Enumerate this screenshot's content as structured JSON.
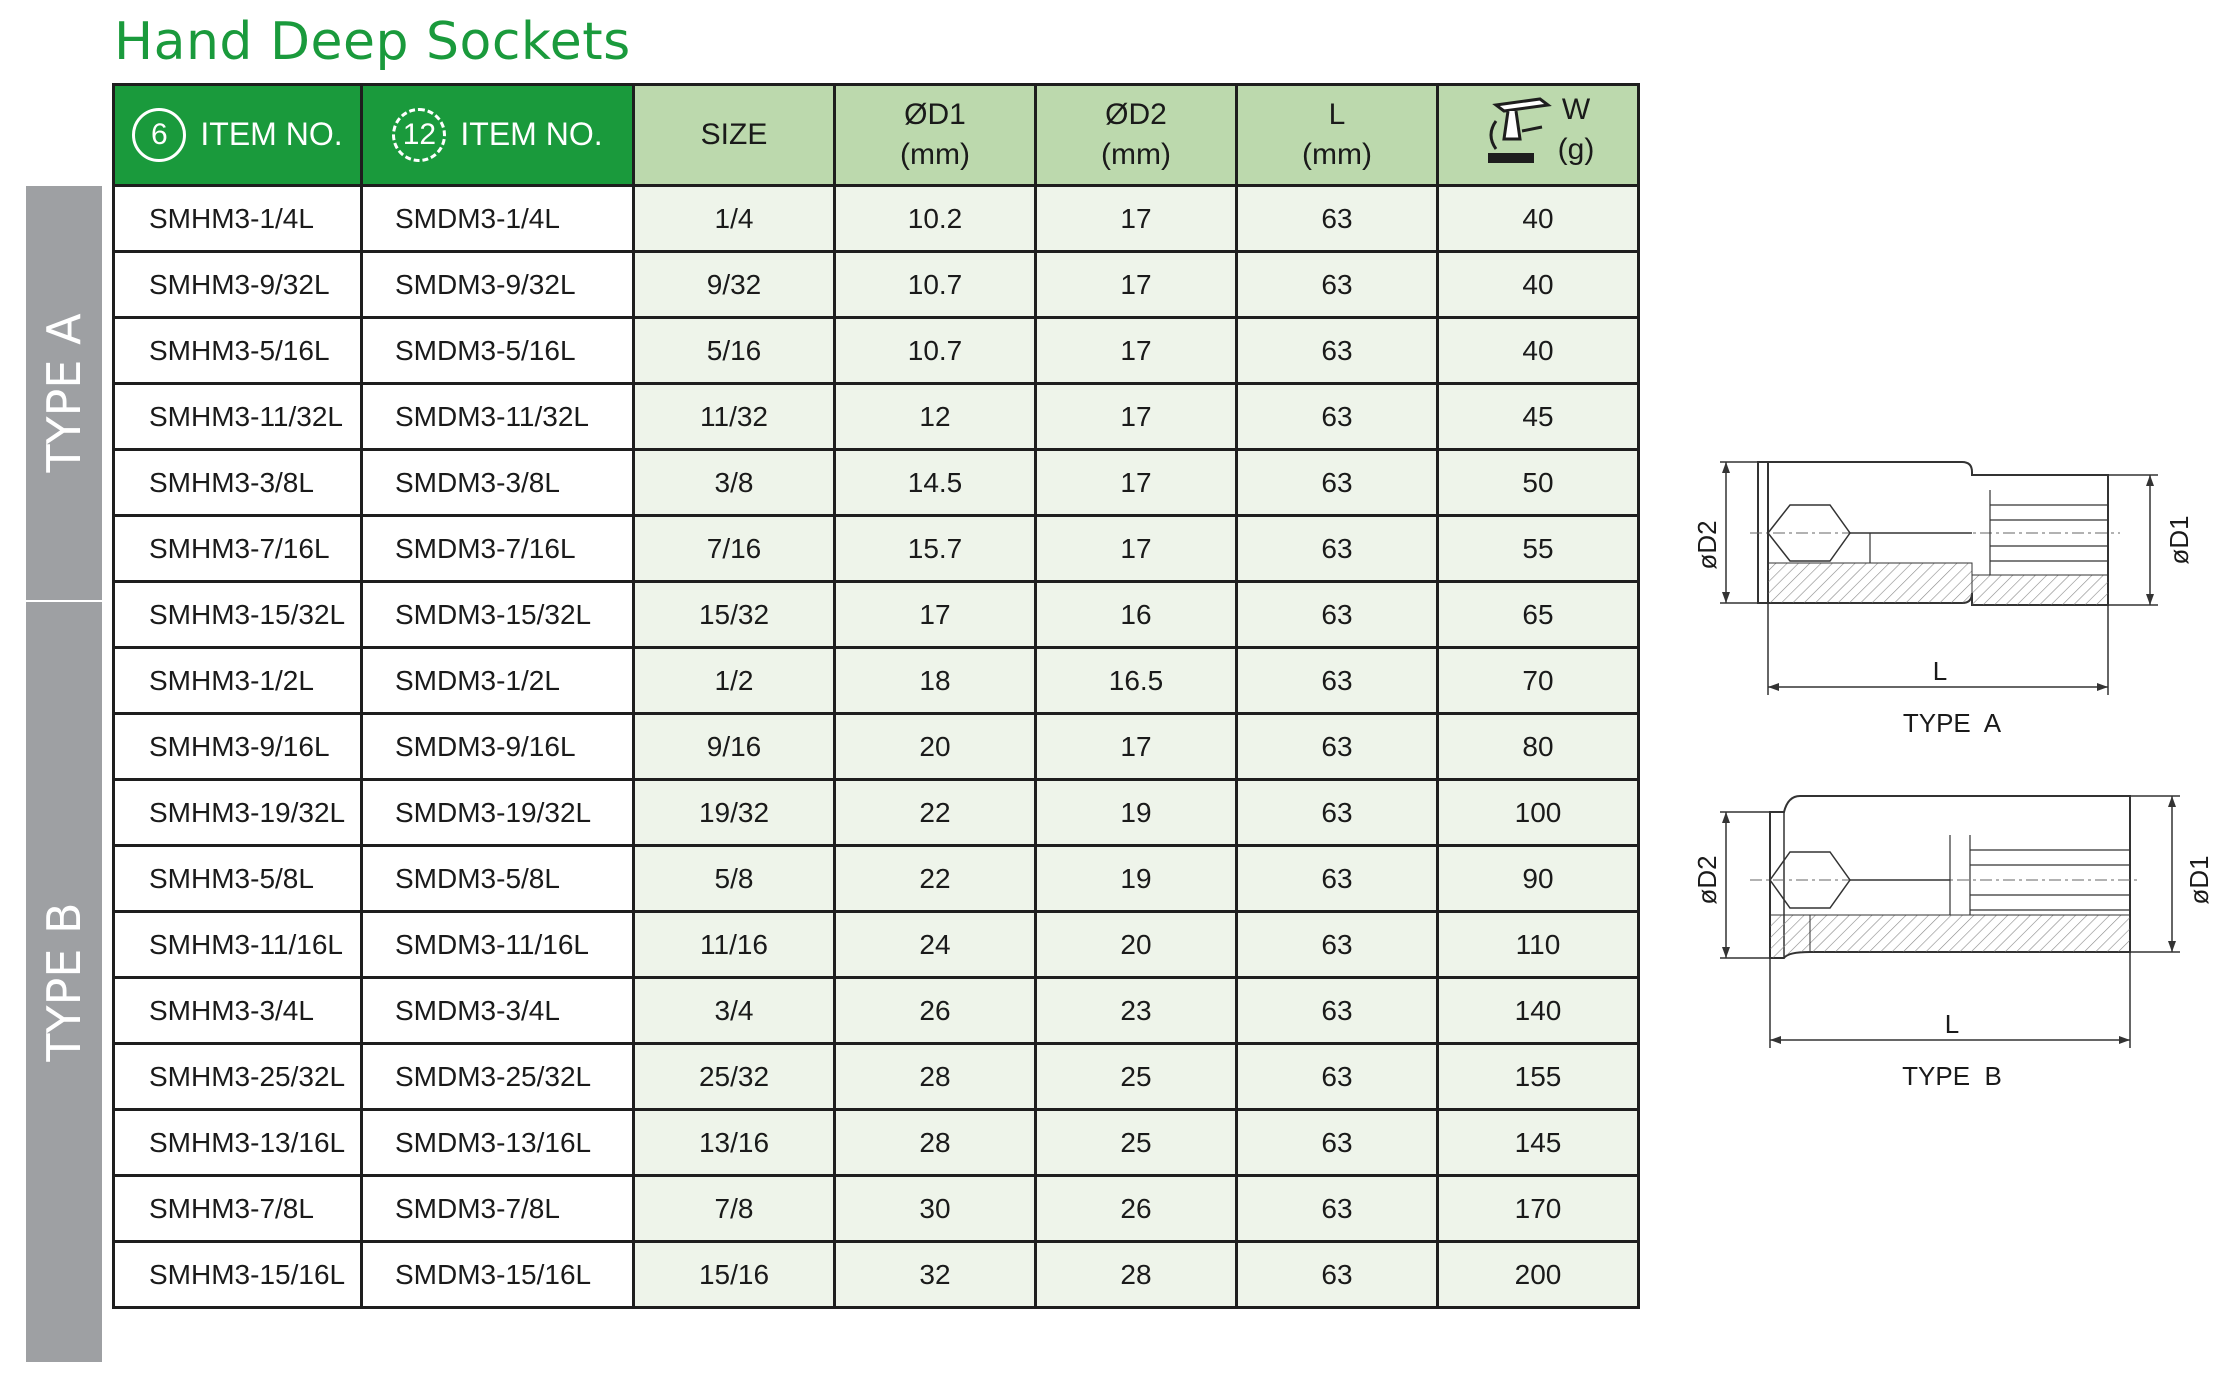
{
  "page": {
    "title": "Hand Deep Sockets"
  },
  "sidebar": {
    "type_a": "TYPE A",
    "type_b": "TYPE B"
  },
  "header": {
    "hex6_number": "6",
    "hex12_number": "12",
    "item_no_6": "ITEM NO.",
    "item_no_12": "ITEM NO.",
    "size": "SIZE",
    "d1": "ØD1",
    "d1_unit": "(mm)",
    "d2": "ØD2",
    "d2_unit": "(mm)",
    "l": "L",
    "l_unit": "(mm)",
    "w": "W",
    "w_unit": "(g)",
    "weight_icon": "scale-icon"
  },
  "rows": [
    {
      "item6": "SMHM3-1/4L",
      "item12": "SMDM3-1/4L",
      "size": "1/4",
      "d1": "10.2",
      "d2": "17",
      "l": "63",
      "w": "40"
    },
    {
      "item6": "SMHM3-9/32L",
      "item12": "SMDM3-9/32L",
      "size": "9/32",
      "d1": "10.7",
      "d2": "17",
      "l": "63",
      "w": "40"
    },
    {
      "item6": "SMHM3-5/16L",
      "item12": "SMDM3-5/16L",
      "size": "5/16",
      "d1": "10.7",
      "d2": "17",
      "l": "63",
      "w": "40"
    },
    {
      "item6": "SMHM3-11/32L",
      "item12": "SMDM3-11/32L",
      "size": "11/32",
      "d1": "12",
      "d2": "17",
      "l": "63",
      "w": "45"
    },
    {
      "item6": "SMHM3-3/8L",
      "item12": "SMDM3-3/8L",
      "size": "3/8",
      "d1": "14.5",
      "d2": "17",
      "l": "63",
      "w": "50"
    },
    {
      "item6": "SMHM3-7/16L",
      "item12": "SMDM3-7/16L",
      "size": "7/16",
      "d1": "15.7",
      "d2": "17",
      "l": "63",
      "w": "55"
    },
    {
      "item6": "SMHM3-15/32L",
      "item12": "SMDM3-15/32L",
      "size": "15/32",
      "d1": "17",
      "d2": "16",
      "l": "63",
      "w": "65"
    },
    {
      "item6": "SMHM3-1/2L",
      "item12": "SMDM3-1/2L",
      "size": "1/2",
      "d1": "18",
      "d2": "16.5",
      "l": "63",
      "w": "70"
    },
    {
      "item6": "SMHM3-9/16L",
      "item12": "SMDM3-9/16L",
      "size": "9/16",
      "d1": "20",
      "d2": "17",
      "l": "63",
      "w": "80"
    },
    {
      "item6": "SMHM3-19/32L",
      "item12": "SMDM3-19/32L",
      "size": "19/32",
      "d1": "22",
      "d2": "19",
      "l": "63",
      "w": "100"
    },
    {
      "item6": "SMHM3-5/8L",
      "item12": "SMDM3-5/8L",
      "size": "5/8",
      "d1": "22",
      "d2": "19",
      "l": "63",
      "w": "90"
    },
    {
      "item6": "SMHM3-11/16L",
      "item12": "SMDM3-11/16L",
      "size": "11/16",
      "d1": "24",
      "d2": "20",
      "l": "63",
      "w": "110"
    },
    {
      "item6": "SMHM3-3/4L",
      "item12": "SMDM3-3/4L",
      "size": "3/4",
      "d1": "26",
      "d2": "23",
      "l": "63",
      "w": "140"
    },
    {
      "item6": "SMHM3-25/32L",
      "item12": "SMDM3-25/32L",
      "size": "25/32",
      "d1": "28",
      "d2": "25",
      "l": "63",
      "w": "155"
    },
    {
      "item6": "SMHM3-13/16L",
      "item12": "SMDM3-13/16L",
      "size": "13/16",
      "d1": "28",
      "d2": "25",
      "l": "63",
      "w": "145"
    },
    {
      "item6": "SMHM3-7/8L",
      "item12": "SMDM3-7/8L",
      "size": "7/8",
      "d1": "30",
      "d2": "26",
      "l": "63",
      "w": "170"
    },
    {
      "item6": "SMHM3-15/16L",
      "item12": "SMDM3-15/16L",
      "size": "15/16",
      "d1": "32",
      "d2": "28",
      "l": "63",
      "w": "200"
    }
  ],
  "drawings": {
    "a": {
      "caption": "TYPE  A",
      "d2": "øD2",
      "d1": "øD1",
      "l": "L"
    },
    "b": {
      "caption": "TYPE  B",
      "d2": "øD2",
      "d1": "øD1",
      "l": "L"
    }
  }
}
